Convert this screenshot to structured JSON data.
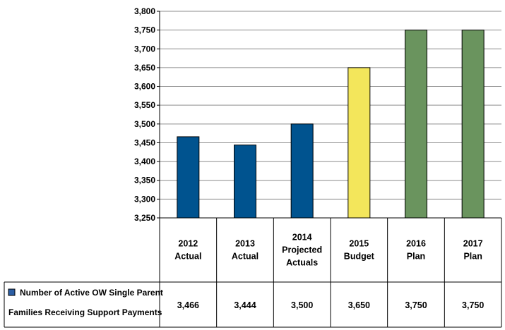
{
  "chart_data": {
    "type": "bar",
    "title": "",
    "xlabel": "",
    "ylabel": "",
    "ylim": [
      3250,
      3800
    ],
    "y_ticks": [
      3250,
      3300,
      3350,
      3400,
      3450,
      3500,
      3550,
      3600,
      3650,
      3700,
      3750,
      3800
    ],
    "grid": true,
    "legend_placement": "bottom-left (data table row header)",
    "categories": [
      [
        "2012",
        "Actual"
      ],
      [
        "2013",
        "Actual"
      ],
      [
        "2014",
        "Projected",
        "Actuals"
      ],
      [
        "2015",
        "Budget"
      ],
      [
        "2016",
        "Plan"
      ],
      [
        "2017",
        "Plan"
      ]
    ],
    "series": [
      {
        "name": "Number of Active OW Single Parent Families Receiving Support Payments",
        "name_lines": [
          "Number of Active OW Single Parent",
          "Families Receiving Support Payments"
        ],
        "values": [
          3466,
          3444,
          3500,
          3650,
          3750,
          3750
        ],
        "value_labels": [
          "3,466",
          "3,444",
          "3,500",
          "3,650",
          "3,750",
          "3,750"
        ],
        "bar_colors": [
          "#00538f",
          "#00538f",
          "#00538f",
          "#f3e65b",
          "#6a945e",
          "#6a945e"
        ],
        "legend_color": "#2b5ea4"
      }
    ]
  }
}
